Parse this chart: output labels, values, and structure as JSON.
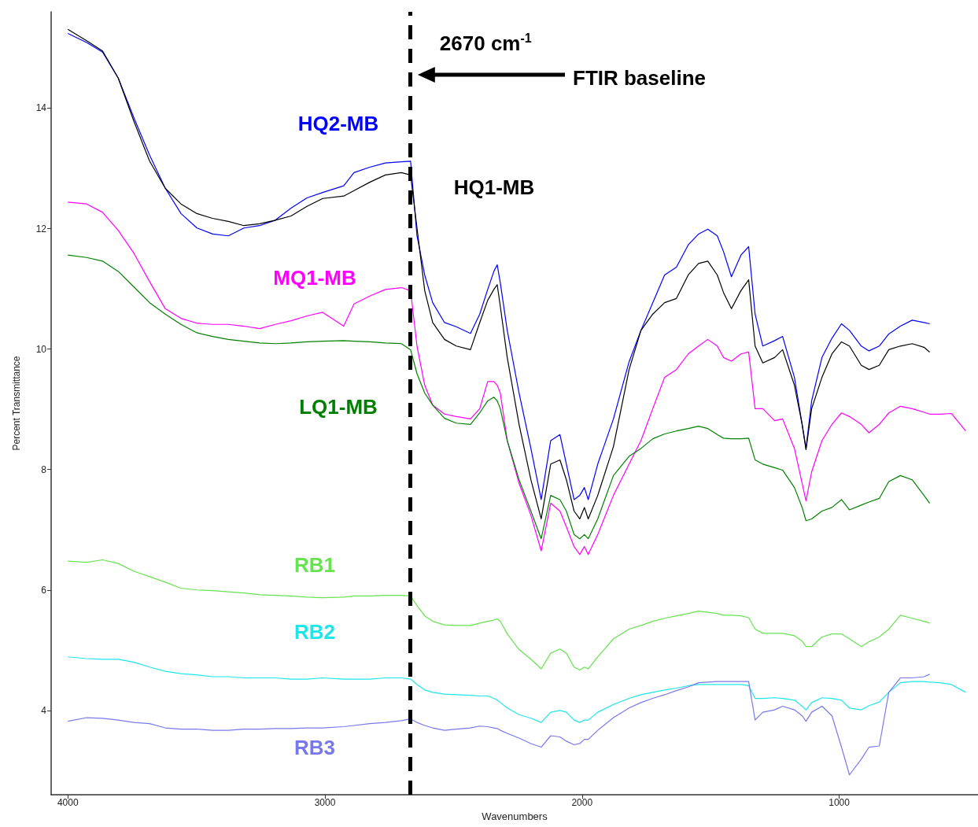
{
  "chart_data": {
    "type": "line",
    "xlabel": "Wavenumbers",
    "ylabel": "Percent Transmittance",
    "xlim": [
      4065,
      460
    ],
    "ylim": [
      2.6,
      15.6
    ],
    "xticks": [
      4000,
      3000,
      2000,
      1000
    ],
    "yticks": [
      4,
      6,
      8,
      10,
      12,
      14
    ],
    "grid": false,
    "legend": false,
    "marker": "none",
    "line_style": "solid",
    "ref_lines": [
      {
        "axis": "x",
        "value": 2670,
        "label": "2670 cm$^{-1}$",
        "color": "#000000",
        "line_style": "dashed"
      }
    ],
    "annotations": [
      "FTIR baseline"
    ],
    "x": [
      4000,
      3927,
      3865,
      3804,
      3743,
      3682,
      3621,
      3560,
      3498,
      3437,
      3376,
      3315,
      3254,
      3193,
      3132,
      3070,
      3009,
      2927,
      2887,
      2826,
      2765,
      2703,
      2667,
      2642,
      2612,
      2581,
      2535,
      2489,
      2434,
      2398,
      2367,
      2343,
      2330,
      2318,
      2291,
      2245,
      2199,
      2159,
      2122,
      2086,
      2061,
      2031,
      2009,
      1991,
      1976,
      1939,
      1878,
      1817,
      1771,
      1725,
      1679,
      1633,
      1587,
      1547,
      1511,
      1474,
      1450,
      1419,
      1382,
      1352,
      1327,
      1297,
      1251,
      1220,
      1174,
      1144,
      1129,
      1107,
      1067,
      1028,
      991,
      960,
      914,
      884,
      844,
      807,
      762,
      716,
      670,
      648,
      609,
      563,
      508
    ],
    "series": [
      {
        "name": "HQ2-MB",
        "color": "#0000ff",
        "values": [
          15.24,
          15.09,
          14.93,
          14.5,
          13.84,
          13.22,
          12.67,
          12.25,
          12.01,
          11.91,
          11.88,
          12.01,
          12.05,
          12.14,
          12.34,
          12.51,
          12.6,
          12.71,
          12.93,
          13.02,
          13.09,
          13.11,
          13.12,
          11.88,
          11.23,
          10.77,
          10.44,
          10.37,
          10.26,
          10.58,
          10.99,
          11.29,
          11.4,
          11.1,
          10.31,
          9.27,
          8.35,
          7.5,
          8.48,
          8.58,
          8.09,
          7.5,
          7.57,
          7.7,
          7.5,
          8.09,
          8.84,
          9.79,
          10.31,
          10.77,
          11.23,
          11.36,
          11.73,
          11.91,
          11.99,
          11.88,
          11.62,
          11.2,
          11.56,
          11.7,
          10.58,
          10.05,
          10.14,
          10.21,
          9.53,
          8.75,
          8.35,
          9.14,
          9.86,
          10.18,
          10.42,
          10.31,
          10.05,
          9.97,
          10.05,
          10.25,
          10.38,
          10.48,
          10.44,
          10.42,
          null,
          null,
          null
        ]
      },
      {
        "name": "HQ1-MB",
        "color": "#000000",
        "values": [
          15.31,
          15.12,
          14.95,
          14.5,
          13.78,
          13.12,
          12.67,
          12.41,
          12.25,
          12.17,
          12.12,
          12.05,
          12.08,
          12.14,
          12.21,
          12.37,
          12.5,
          12.54,
          12.63,
          12.77,
          12.89,
          12.93,
          12.89,
          12.01,
          10.97,
          10.44,
          10.16,
          10.05,
          9.99,
          10.44,
          10.81,
          10.99,
          11.07,
          10.71,
          9.86,
          8.75,
          7.83,
          7.18,
          8.09,
          8.16,
          7.83,
          7.31,
          7.18,
          7.37,
          7.18,
          7.57,
          8.38,
          9.66,
          10.31,
          10.58,
          10.77,
          10.84,
          11.23,
          11.42,
          11.46,
          11.23,
          10.94,
          10.67,
          10.97,
          11.15,
          10.05,
          9.77,
          9.86,
          9.99,
          9.4,
          8.75,
          8.33,
          9.01,
          9.53,
          9.92,
          10.12,
          10.05,
          9.73,
          9.66,
          9.73,
          9.99,
          10.05,
          10.09,
          10.03,
          9.95,
          null,
          null,
          null
        ]
      },
      {
        "name": "MQ1-MB",
        "color": "#ff00ff",
        "values": [
          12.44,
          12.41,
          12.27,
          11.97,
          11.59,
          11.12,
          10.67,
          10.51,
          10.43,
          10.41,
          10.41,
          10.38,
          10.34,
          10.41,
          10.47,
          10.55,
          10.61,
          10.38,
          10.75,
          10.88,
          10.99,
          11.02,
          10.97,
          10.05,
          9.4,
          9.07,
          8.92,
          8.88,
          8.84,
          9.01,
          9.46,
          9.46,
          9.4,
          9.27,
          8.48,
          7.77,
          7.24,
          6.65,
          7.44,
          7.31,
          7.05,
          6.72,
          6.59,
          6.72,
          6.59,
          6.92,
          7.57,
          8.09,
          8.48,
          9.01,
          9.53,
          9.66,
          9.92,
          10.05,
          10.16,
          10.05,
          9.86,
          9.8,
          9.92,
          9.95,
          9.01,
          9.01,
          8.81,
          8.84,
          8.35,
          7.77,
          7.48,
          7.96,
          8.48,
          8.75,
          8.94,
          8.88,
          8.75,
          8.61,
          8.75,
          8.94,
          9.05,
          9.01,
          8.95,
          8.92,
          8.92,
          8.93,
          8.64
        ]
      },
      {
        "name": "LQ1-MB",
        "color": "#008000",
        "values": [
          11.56,
          11.52,
          11.46,
          11.29,
          11.03,
          10.77,
          10.58,
          10.41,
          10.27,
          10.21,
          10.16,
          10.13,
          10.1,
          10.09,
          10.1,
          10.12,
          10.13,
          10.14,
          10.13,
          10.12,
          10.1,
          10.09,
          9.99,
          9.59,
          9.27,
          9.07,
          8.85,
          8.77,
          8.75,
          8.94,
          9.14,
          9.2,
          9.14,
          9.01,
          8.48,
          7.83,
          7.31,
          6.85,
          7.57,
          7.5,
          7.31,
          6.92,
          6.85,
          6.92,
          6.85,
          7.18,
          7.9,
          8.22,
          8.35,
          8.51,
          8.59,
          8.64,
          8.68,
          8.72,
          8.68,
          8.58,
          8.52,
          8.51,
          8.51,
          8.52,
          8.16,
          8.09,
          8.03,
          7.99,
          7.7,
          7.37,
          7.15,
          7.18,
          7.31,
          7.37,
          7.5,
          7.33,
          7.41,
          7.46,
          7.52,
          7.8,
          7.9,
          7.83,
          7.57,
          7.44,
          null,
          null,
          null
        ]
      },
      {
        "name": "RB1",
        "color": "#66e34f",
        "values": [
          6.48,
          6.46,
          6.5,
          6.44,
          6.31,
          6.22,
          6.13,
          6.03,
          6.0,
          5.99,
          5.97,
          5.95,
          5.92,
          5.91,
          5.9,
          5.88,
          5.87,
          5.88,
          5.9,
          5.9,
          5.91,
          5.91,
          5.9,
          5.74,
          5.57,
          5.48,
          5.42,
          5.41,
          5.41,
          5.45,
          5.48,
          5.5,
          5.52,
          5.48,
          5.27,
          5.01,
          4.85,
          4.69,
          4.95,
          5.02,
          4.95,
          4.72,
          4.67,
          4.72,
          4.69,
          4.89,
          5.19,
          5.35,
          5.41,
          5.48,
          5.53,
          5.57,
          5.61,
          5.65,
          5.63,
          5.61,
          5.58,
          5.58,
          5.57,
          5.54,
          5.35,
          5.28,
          5.28,
          5.28,
          5.24,
          5.15,
          5.06,
          5.06,
          5.22,
          5.27,
          5.27,
          5.19,
          5.06,
          5.14,
          5.22,
          5.35,
          5.58,
          5.53,
          5.48,
          5.45,
          null,
          null,
          null
        ]
      },
      {
        "name": "RB2",
        "color": "#1ee6ea",
        "values": [
          4.89,
          4.86,
          4.85,
          4.85,
          4.8,
          4.72,
          4.65,
          4.61,
          4.59,
          4.56,
          4.56,
          4.54,
          4.54,
          4.54,
          4.52,
          4.52,
          4.54,
          4.52,
          4.52,
          4.52,
          4.54,
          4.54,
          4.52,
          4.43,
          4.34,
          4.3,
          4.27,
          4.26,
          4.25,
          4.24,
          4.24,
          4.2,
          4.17,
          4.13,
          4.04,
          3.93,
          3.87,
          3.8,
          3.97,
          4.0,
          3.97,
          3.84,
          3.8,
          3.84,
          3.84,
          3.97,
          4.1,
          4.2,
          4.26,
          4.3,
          4.34,
          4.37,
          4.41,
          4.43,
          4.43,
          4.43,
          4.43,
          4.43,
          4.43,
          4.41,
          4.2,
          4.2,
          4.21,
          4.2,
          4.17,
          4.07,
          4.01,
          4.13,
          4.21,
          4.2,
          4.17,
          4.04,
          4.01,
          4.08,
          4.14,
          4.3,
          4.46,
          4.48,
          4.48,
          4.47,
          4.46,
          4.43,
          4.3
        ]
      },
      {
        "name": "RB3",
        "color": "#7878ee",
        "values": [
          3.82,
          3.88,
          3.87,
          3.84,
          3.8,
          3.78,
          3.71,
          3.69,
          3.69,
          3.67,
          3.67,
          3.69,
          3.69,
          3.7,
          3.7,
          3.71,
          3.71,
          3.73,
          3.75,
          3.78,
          3.8,
          3.83,
          3.86,
          3.8,
          3.75,
          3.71,
          3.67,
          3.69,
          3.71,
          3.74,
          3.73,
          3.71,
          3.7,
          3.67,
          3.62,
          3.54,
          3.45,
          3.39,
          3.58,
          3.56,
          3.49,
          3.43,
          3.45,
          3.52,
          3.52,
          3.67,
          3.88,
          4.04,
          4.13,
          4.2,
          4.26,
          4.33,
          4.39,
          4.46,
          4.47,
          4.48,
          4.48,
          4.48,
          4.48,
          4.48,
          3.84,
          3.97,
          4.01,
          4.07,
          4.01,
          3.91,
          3.82,
          3.97,
          4.07,
          3.91,
          3.39,
          2.93,
          3.19,
          3.39,
          3.41,
          4.3,
          4.54,
          4.54,
          4.56,
          4.6,
          null,
          null,
          null
        ]
      }
    ]
  }
}
